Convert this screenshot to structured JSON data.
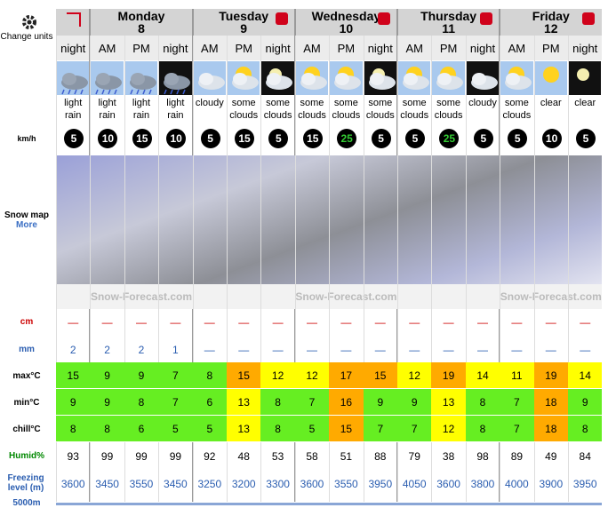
{
  "side": {
    "change_units": "Change units",
    "wind_unit": "km/h",
    "snow_map": "Snow map",
    "more": "More",
    "snow_unit": "cm",
    "rain_unit": "mm",
    "max": "max°C",
    "min": "min°C",
    "chill": "chill°C",
    "humid": "Humid%",
    "freezing": "Freezing level (m)",
    "alt": "5000m"
  },
  "days": [
    {
      "name": "Monday",
      "date": "8",
      "span": 3
    },
    {
      "name": "Tuesday",
      "date": "9",
      "span": 3
    },
    {
      "name": "Wednesday",
      "date": "10",
      "span": 3
    },
    {
      "name": "Thursday",
      "date": "11",
      "span": 3
    },
    {
      "name": "Friday",
      "date": "12",
      "span": 3
    }
  ],
  "logo": "Snow-Forecast.com",
  "table": {
    "periods": [
      "night",
      "AM",
      "PM",
      "night",
      "AM",
      "PM",
      "night",
      "AM",
      "PM",
      "night",
      "AM",
      "PM",
      "night",
      "AM",
      "PM",
      "night"
    ],
    "icons": [
      "rain",
      "rain",
      "rain",
      "rain-night",
      "cloud",
      "sun-cloud",
      "moon-cloud",
      "sun-cloud",
      "sun-cloud",
      "moon-cloud",
      "sun-cloud",
      "sun-cloud",
      "cloud-night",
      "sun-cloud",
      "sun",
      "moon"
    ],
    "weather": [
      "light rain",
      "light rain",
      "light rain",
      "light rain",
      "cloudy",
      "some clouds",
      "some clouds",
      "some clouds",
      "some clouds",
      "some clouds",
      "some clouds",
      "some clouds",
      "cloudy",
      "some clouds",
      "clear",
      "clear"
    ],
    "wind": [
      "5",
      "10",
      "15",
      "10",
      "5",
      "15",
      "5",
      "15",
      "25",
      "5",
      "5",
      "25",
      "5",
      "5",
      "10",
      "5"
    ],
    "wind_colors": [
      "#fff",
      "#fff",
      "#fff",
      "#fff",
      "#fff",
      "#fff",
      "#fff",
      "#fff",
      "#3c3",
      "#fff",
      "#fff",
      "#3c3",
      "#fff",
      "#fff",
      "#fff",
      "#fff"
    ],
    "snow": [
      "—",
      "—",
      "—",
      "—",
      "—",
      "—",
      "—",
      "—",
      "—",
      "—",
      "—",
      "—",
      "—",
      "—",
      "—",
      "—"
    ],
    "rain": [
      "2",
      "2",
      "2",
      "1",
      "—",
      "—",
      "—",
      "—",
      "—",
      "—",
      "—",
      "—",
      "—",
      "—",
      "—",
      "—"
    ],
    "max": [
      "15",
      "9",
      "9",
      "7",
      "8",
      "15",
      "12",
      "12",
      "17",
      "15",
      "12",
      "19",
      "14",
      "11",
      "19",
      "14"
    ],
    "max_colors": [
      "#66ee22",
      "#66ee22",
      "#66ee22",
      "#66ee22",
      "#66ee22",
      "#ffaa00",
      "#ffff00",
      "#ffff00",
      "#ffaa00",
      "#ffaa00",
      "#ffff00",
      "#ffaa00",
      "#ffff00",
      "#ffff00",
      "#ffaa00",
      "#ffff00"
    ],
    "min": [
      "9",
      "9",
      "8",
      "7",
      "6",
      "13",
      "8",
      "7",
      "16",
      "9",
      "9",
      "13",
      "8",
      "7",
      "18",
      "9"
    ],
    "min_colors": [
      "#66ee22",
      "#66ee22",
      "#66ee22",
      "#66ee22",
      "#66ee22",
      "#ffff00",
      "#66ee22",
      "#66ee22",
      "#ffaa00",
      "#66ee22",
      "#66ee22",
      "#ffff00",
      "#66ee22",
      "#66ee22",
      "#ffaa00",
      "#66ee22"
    ],
    "chill": [
      "8",
      "8",
      "6",
      "5",
      "5",
      "13",
      "8",
      "5",
      "15",
      "7",
      "7",
      "12",
      "8",
      "7",
      "18",
      "8"
    ],
    "chill_colors": [
      "#66ee22",
      "#66ee22",
      "#66ee22",
      "#66ee22",
      "#66ee22",
      "#ffff00",
      "#66ee22",
      "#66ee22",
      "#ffaa00",
      "#66ee22",
      "#66ee22",
      "#ffff00",
      "#66ee22",
      "#66ee22",
      "#ffaa00",
      "#66ee22"
    ],
    "humid": [
      "93",
      "99",
      "99",
      "99",
      "92",
      "48",
      "53",
      "58",
      "51",
      "88",
      "79",
      "38",
      "98",
      "89",
      "49",
      "84"
    ],
    "freezing": [
      "3600",
      "3450",
      "3550",
      "3450",
      "3250",
      "3200",
      "3300",
      "3600",
      "3550",
      "3950",
      "4050",
      "3600",
      "3800",
      "4000",
      "3900",
      "3950"
    ]
  }
}
